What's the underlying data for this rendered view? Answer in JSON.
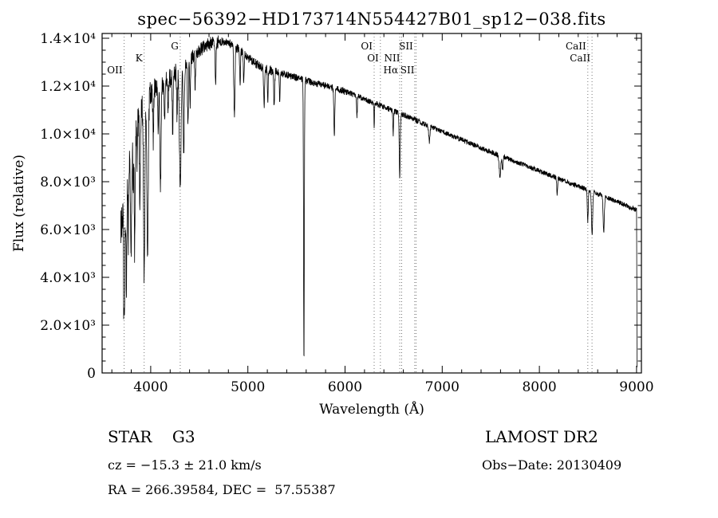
{
  "chart_data": {
    "type": "line",
    "title": "spec−56392−HD173714N554427B01_sp12−038.fits",
    "xlabel": "Wavelength (Å)",
    "ylabel": "Flux (relative)",
    "xlim": [
      3500,
      9050
    ],
    "ylim": [
      0,
      14200
    ],
    "grid": false,
    "line_color": "#000000",
    "marker_line_color": "#777777",
    "x_ticks": [
      {
        "value": 4000,
        "label": "4000"
      },
      {
        "value": 5000,
        "label": "5000"
      },
      {
        "value": 6000,
        "label": "6000"
      },
      {
        "value": 7000,
        "label": "7000"
      },
      {
        "value": 8000,
        "label": "8000"
      },
      {
        "value": 9000,
        "label": "9000"
      }
    ],
    "y_ticks": [
      {
        "value": 0,
        "label": "0"
      },
      {
        "value": 2000,
        "label": "2.0×10³"
      },
      {
        "value": 4000,
        "label": "4.0×10³"
      },
      {
        "value": 6000,
        "label": "6.0×10³"
      },
      {
        "value": 8000,
        "label": "8.0×10³"
      },
      {
        "value": 10000,
        "label": "1.0×10⁴"
      },
      {
        "value": 12000,
        "label": "1.2×10⁴"
      },
      {
        "value": 14000,
        "label": "1.4×10⁴"
      }
    ],
    "x_minor_step": 200,
    "y_minor_step": 500,
    "spectral_markers": [
      {
        "label": "OII",
        "wavelength": 3727,
        "row": 2
      },
      {
        "label": "K",
        "wavelength": 3933,
        "row": 1
      },
      {
        "label": "G",
        "wavelength": 4304,
        "row": 0
      },
      {
        "label": "OI",
        "wavelength": 6300,
        "row": 0
      },
      {
        "label": "OI",
        "wavelength": 6364,
        "row": 1
      },
      {
        "label": "Hα",
        "wavelength": 6563,
        "row": 2
      },
      {
        "label": "NII",
        "wavelength": 6583,
        "row": 1
      },
      {
        "label": "SII",
        "wavelength": 6717,
        "row": 0
      },
      {
        "label": "SII",
        "wavelength": 6731,
        "row": 2
      },
      {
        "label": "CaII",
        "wavelength": 8498,
        "row": 0
      },
      {
        "label": "CaII",
        "wavelength": 8542,
        "row": 1
      }
    ],
    "wave_start": 3692,
    "wave_end": 9006,
    "wave_step": 2,
    "noise_seed": 20130409,
    "continuum": [
      [
        3690,
        6000
      ],
      [
        3710,
        6800
      ],
      [
        3730,
        7600
      ],
      [
        3760,
        8300
      ],
      [
        3790,
        9100
      ],
      [
        3820,
        9800
      ],
      [
        3850,
        10400
      ],
      [
        3880,
        10900
      ],
      [
        3910,
        11200
      ],
      [
        3950,
        11450
      ],
      [
        4000,
        11650
      ],
      [
        4060,
        11850
      ],
      [
        4120,
        12050
      ],
      [
        4180,
        12250
      ],
      [
        4240,
        12450
      ],
      [
        4300,
        12700
      ],
      [
        4360,
        12950
      ],
      [
        4420,
        13200
      ],
      [
        4480,
        13450
      ],
      [
        4540,
        13620
      ],
      [
        4600,
        13750
      ],
      [
        4660,
        13830
      ],
      [
        4720,
        13860
      ],
      [
        4780,
        13840
      ],
      [
        4840,
        13740
      ],
      [
        4900,
        13560
      ],
      [
        4960,
        13340
      ],
      [
        5020,
        13120
      ],
      [
        5080,
        12940
      ],
      [
        5140,
        12810
      ],
      [
        5200,
        12710
      ],
      [
        5260,
        12630
      ],
      [
        5320,
        12560
      ],
      [
        5380,
        12490
      ],
      [
        5440,
        12420
      ],
      [
        5500,
        12350
      ],
      [
        5560,
        12280
      ],
      [
        5620,
        12210
      ],
      [
        5700,
        12120
      ],
      [
        5780,
        12030
      ],
      [
        5860,
        11940
      ],
      [
        5940,
        11850
      ],
      [
        6020,
        11740
      ],
      [
        6100,
        11620
      ],
      [
        6180,
        11490
      ],
      [
        6260,
        11360
      ],
      [
        6340,
        11230
      ],
      [
        6420,
        11100
      ],
      [
        6500,
        10970
      ],
      [
        6580,
        10830
      ],
      [
        6660,
        10690
      ],
      [
        6740,
        10550
      ],
      [
        6820,
        10410
      ],
      [
        6900,
        10270
      ],
      [
        6980,
        10130
      ],
      [
        7060,
        9990
      ],
      [
        7160,
        9820
      ],
      [
        7260,
        9650
      ],
      [
        7360,
        9480
      ],
      [
        7460,
        9310
      ],
      [
        7560,
        9150
      ],
      [
        7660,
        8990
      ],
      [
        7760,
        8830
      ],
      [
        7860,
        8670
      ],
      [
        7960,
        8510
      ],
      [
        8060,
        8350
      ],
      [
        8160,
        8190
      ],
      [
        8260,
        8030
      ],
      [
        8360,
        7870
      ],
      [
        8460,
        7710
      ],
      [
        8560,
        7550
      ],
      [
        8660,
        7390
      ],
      [
        8760,
        7230
      ],
      [
        8860,
        7060
      ],
      [
        8960,
        6890
      ],
      [
        9000,
        6820
      ],
      [
        9002,
        4000
      ],
      [
        9004,
        1200
      ],
      [
        9006,
        150
      ]
    ],
    "absorption_features": [
      [
        3727,
        5600,
        6
      ],
      [
        3750,
        4200,
        5
      ],
      [
        3770,
        2600,
        4
      ],
      [
        3798,
        4300,
        5
      ],
      [
        3820,
        2400,
        4
      ],
      [
        3835,
        4800,
        5
      ],
      [
        3860,
        2200,
        4
      ],
      [
        3889,
        4400,
        5
      ],
      [
        3933,
        7300,
        7
      ],
      [
        3968,
        6500,
        7
      ],
      [
        4026,
        1900,
        4
      ],
      [
        4077,
        1700,
        4
      ],
      [
        4101,
        4100,
        6
      ],
      [
        4144,
        1800,
        4
      ],
      [
        4178,
        1500,
        4
      ],
      [
        4226,
        2300,
        4
      ],
      [
        4271,
        1900,
        4
      ],
      [
        4304,
        4700,
        9
      ],
      [
        4340,
        3600,
        6
      ],
      [
        4383,
        2600,
        5
      ],
      [
        4405,
        1900,
        4
      ],
      [
        4457,
        1400,
        4
      ],
      [
        4668,
        1600,
        5
      ],
      [
        4861,
        2900,
        6
      ],
      [
        4920,
        1500,
        4
      ],
      [
        4957,
        1200,
        4
      ],
      [
        5167,
        1600,
        5
      ],
      [
        5205,
        1300,
        4
      ],
      [
        5270,
        1500,
        5
      ],
      [
        5328,
        1200,
        4
      ],
      [
        5577,
        11900,
        4
      ],
      [
        5890,
        1900,
        5
      ],
      [
        6122,
        900,
        4
      ],
      [
        6300,
        950,
        3
      ],
      [
        6495,
        1000,
        4
      ],
      [
        6563,
        2700,
        5
      ],
      [
        6867,
        650,
        6
      ],
      [
        7594,
        850,
        8
      ],
      [
        7621,
        550,
        5
      ],
      [
        8183,
        700,
        4
      ],
      [
        8498,
        1300,
        5
      ],
      [
        8542,
        1800,
        6
      ],
      [
        8662,
        1500,
        6
      ]
    ],
    "noise_segments": [
      [
        3690,
        3780,
        1100
      ],
      [
        3780,
        3900,
        800
      ],
      [
        3900,
        4050,
        550
      ],
      [
        4050,
        4350,
        420
      ],
      [
        4350,
        4700,
        300
      ],
      [
        4700,
        5300,
        200
      ],
      [
        5300,
        6000,
        150
      ],
      [
        6000,
        6800,
        120
      ],
      [
        6800,
        7600,
        110
      ],
      [
        7600,
        9007,
        100
      ]
    ]
  },
  "footer": {
    "star": "STAR    G3",
    "survey": "LAMOST DR2",
    "cz": "cz = −15.3 ± 21.0 km/s",
    "obs_date": "Obs−Date: 20130409",
    "coords": "RA = 266.39584, DEC =  57.55387"
  }
}
